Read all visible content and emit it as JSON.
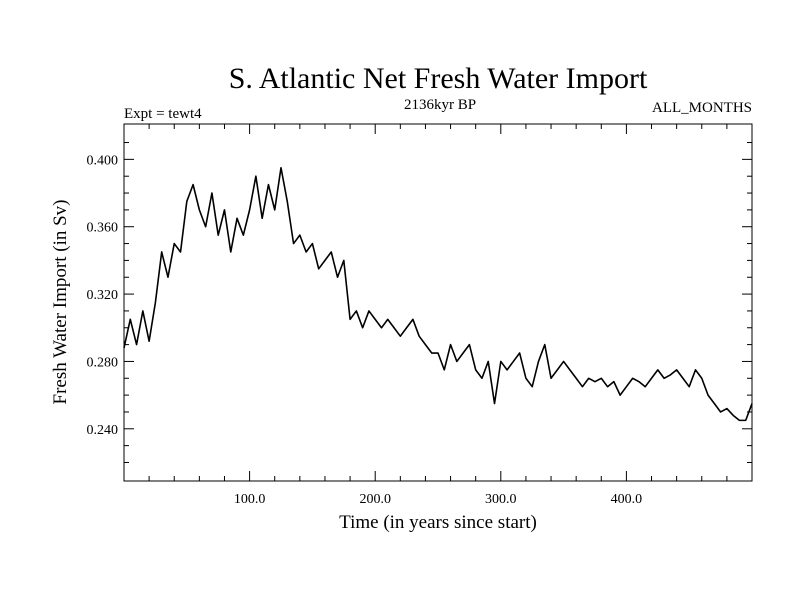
{
  "chart_data": {
    "type": "line",
    "title": "S. Atlantic Net Fresh Water Import",
    "left_label": "Expt = tewt4",
    "center_label": "2136kyr BP",
    "right_label": "ALL_MONTHS",
    "xlabel": "Time (in years since start)",
    "ylabel": "Fresh Water Import (in Sv)",
    "xlim": [
      0,
      500
    ],
    "ylim": [
      0.209,
      0.421
    ],
    "x_ticks": [
      100,
      200,
      300,
      400
    ],
    "x_tick_labels": [
      "100.0",
      "200.0",
      "300.0",
      "400.0"
    ],
    "y_ticks": [
      0.24,
      0.28,
      0.32,
      0.36,
      0.4
    ],
    "y_tick_labels": [
      "0.240",
      "0.280",
      "0.320",
      "0.360",
      "0.400"
    ],
    "grid": false,
    "series": [
      {
        "name": "S. Atlantic net fresh water import",
        "x": [
          0,
          5,
          10,
          15,
          20,
          25,
          30,
          35,
          40,
          45,
          50,
          55,
          60,
          65,
          70,
          75,
          80,
          85,
          90,
          95,
          100,
          105,
          110,
          115,
          120,
          125,
          130,
          135,
          140,
          145,
          150,
          155,
          160,
          165,
          170,
          175,
          180,
          185,
          190,
          195,
          200,
          205,
          210,
          215,
          220,
          225,
          230,
          235,
          240,
          245,
          250,
          255,
          260,
          265,
          270,
          275,
          280,
          285,
          290,
          295,
          300,
          305,
          310,
          315,
          320,
          325,
          330,
          335,
          340,
          345,
          350,
          355,
          360,
          365,
          370,
          375,
          380,
          385,
          390,
          395,
          400,
          405,
          410,
          415,
          420,
          425,
          430,
          435,
          440,
          445,
          450,
          455,
          460,
          465,
          470,
          475,
          480,
          485,
          490,
          495,
          500
        ],
        "values": [
          0.288,
          0.305,
          0.29,
          0.31,
          0.292,
          0.315,
          0.345,
          0.33,
          0.35,
          0.345,
          0.375,
          0.385,
          0.37,
          0.36,
          0.38,
          0.355,
          0.37,
          0.345,
          0.365,
          0.355,
          0.37,
          0.39,
          0.365,
          0.385,
          0.37,
          0.395,
          0.375,
          0.35,
          0.355,
          0.345,
          0.35,
          0.335,
          0.34,
          0.345,
          0.33,
          0.34,
          0.305,
          0.31,
          0.3,
          0.31,
          0.305,
          0.3,
          0.305,
          0.3,
          0.295,
          0.3,
          0.305,
          0.295,
          0.29,
          0.285,
          0.285,
          0.275,
          0.29,
          0.28,
          0.285,
          0.29,
          0.275,
          0.27,
          0.28,
          0.255,
          0.28,
          0.275,
          0.28,
          0.285,
          0.27,
          0.265,
          0.28,
          0.29,
          0.27,
          0.275,
          0.28,
          0.275,
          0.27,
          0.265,
          0.27,
          0.268,
          0.27,
          0.265,
          0.268,
          0.26,
          0.265,
          0.27,
          0.268,
          0.265,
          0.27,
          0.275,
          0.27,
          0.272,
          0.275,
          0.27,
          0.265,
          0.275,
          0.27,
          0.26,
          0.255,
          0.25,
          0.252,
          0.248,
          0.245,
          0.245,
          0.255
        ]
      }
    ]
  }
}
